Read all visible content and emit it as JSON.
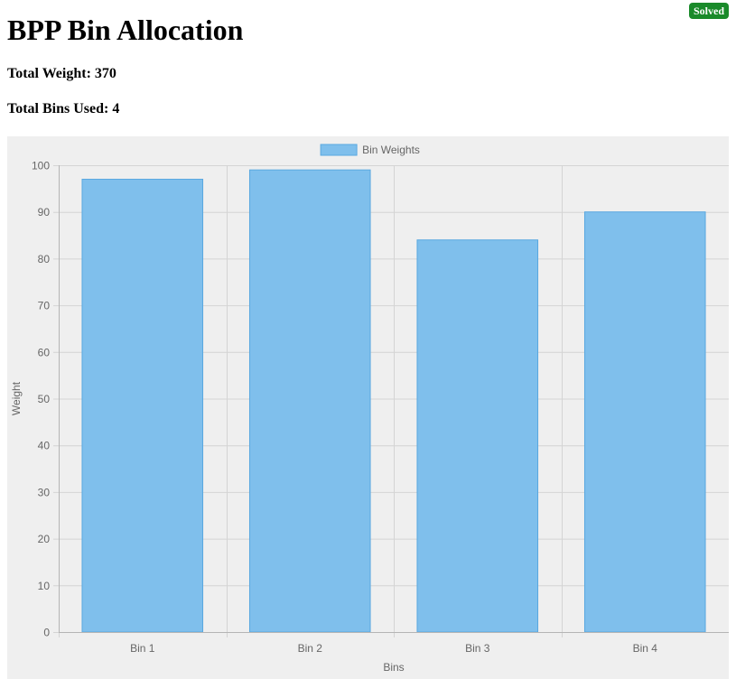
{
  "header": {
    "title": "BPP Bin Allocation",
    "total_weight": "Total Weight: 370",
    "total_bins": "Total Bins Used: 4",
    "status_badge": "Solved"
  },
  "colors": {
    "badge": "#1a8a2a",
    "bar_fill": "#7fbfec",
    "bar_stroke": "#5aa8e0",
    "panel_bg": "#efefef",
    "grid": "#d4d4d4"
  },
  "chart_data": {
    "type": "bar",
    "categories": [
      "Bin 1",
      "Bin 2",
      "Bin 3",
      "Bin 4"
    ],
    "series": [
      {
        "name": "Bin Weights",
        "values": [
          97,
          99,
          84,
          90
        ]
      }
    ],
    "xlabel": "Bins",
    "ylabel": "Weight",
    "ylim": [
      0,
      100
    ],
    "yticks": [
      0,
      10,
      20,
      30,
      40,
      50,
      60,
      70,
      80,
      90,
      100
    ],
    "grid": true,
    "legend": "top-center"
  }
}
